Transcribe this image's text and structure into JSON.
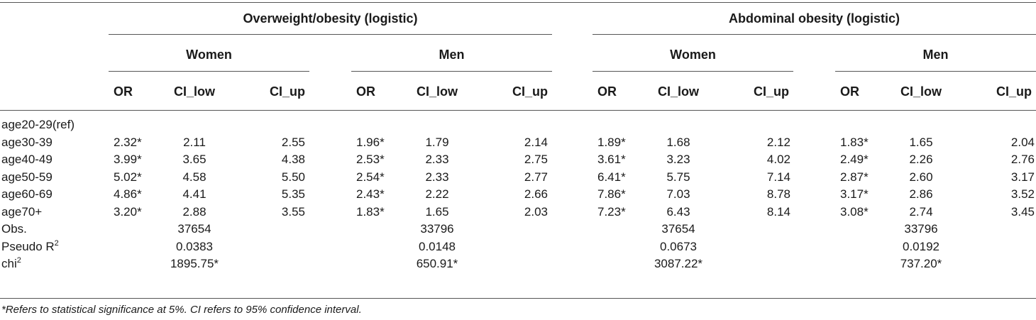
{
  "groups": [
    {
      "label": "Overweight/obesity (logistic)",
      "sexes": [
        "Women",
        "Men"
      ]
    },
    {
      "label": "Abdominal obesity (logistic)",
      "sexes": [
        "Women",
        "Men"
      ]
    }
  ],
  "columns": [
    "OR",
    "CI_low",
    "CI_up",
    "OR",
    "CI_low",
    "CI_up",
    "OR",
    "CI_low",
    "CI_up",
    "OR",
    "CI_low",
    "CI_up"
  ],
  "rows": [
    {
      "label": "age20-29(ref)",
      "values": [
        "",
        "",
        "",
        "",
        "",
        "",
        "",
        "",
        "",
        "",
        "",
        ""
      ]
    },
    {
      "label": "age30-39",
      "values": [
        "2.32*",
        "2.11",
        "2.55",
        "1.96*",
        "1.79",
        "2.14",
        "1.89*",
        "1.68",
        "2.12",
        "1.83*",
        "1.65",
        "2.04"
      ]
    },
    {
      "label": "age40-49",
      "values": [
        "3.99*",
        "3.65",
        "4.38",
        "2.53*",
        "2.33",
        "2.75",
        "3.61*",
        "3.23",
        "4.02",
        "2.49*",
        "2.26",
        "2.76"
      ]
    },
    {
      "label": "age50-59",
      "values": [
        "5.02*",
        "4.58",
        "5.50",
        "2.54*",
        "2.33",
        "2.77",
        "6.41*",
        "5.75",
        "7.14",
        "2.87*",
        "2.60",
        "3.17"
      ]
    },
    {
      "label": "age60-69",
      "values": [
        "4.86*",
        "4.41",
        "5.35",
        "2.43*",
        "2.22",
        "2.66",
        "7.86*",
        "7.03",
        "8.78",
        "3.17*",
        "2.86",
        "3.52"
      ]
    },
    {
      "label": "age70+",
      "values": [
        "3.20*",
        "2.88",
        "3.55",
        "1.83*",
        "1.65",
        "2.03",
        "7.23*",
        "6.43",
        "8.14",
        "3.08*",
        "2.74",
        "3.45"
      ]
    }
  ],
  "stats": [
    {
      "label": "Obs.",
      "label_sup": "",
      "values": [
        "37654",
        "33796",
        "37654",
        "33796"
      ]
    },
    {
      "label": "Pseudo R",
      "label_sup": "2",
      "values": [
        "0.0383",
        "0.0148",
        "0.0673",
        "0.0192"
      ]
    },
    {
      "label": "chi",
      "label_sup": "2",
      "values": [
        "1895.75*",
        "650.91*",
        "3087.22*",
        "737.20*"
      ]
    }
  ],
  "footnote": "*Refers to statistical significance at 5%. CI refers to 95% confidence interval."
}
